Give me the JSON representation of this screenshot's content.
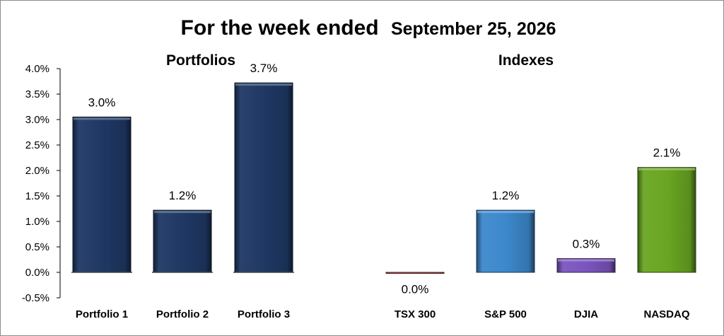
{
  "chart_data": {
    "type": "bar",
    "title": "For the week ended",
    "subtitle": "September 25, 2026",
    "groups": [
      {
        "label": "Portfolios",
        "categories": [
          "Portfolio 1",
          "Portfolio 2",
          "Portfolio 3"
        ]
      },
      {
        "label": "Indexes",
        "categories": [
          "TSX 300",
          "S&P 500",
          "DJIA",
          "NASDAQ"
        ]
      }
    ],
    "categories": [
      "Portfolio 1",
      "Portfolio 2",
      "Portfolio 3",
      "TSX 300",
      "S&P 500",
      "DJIA",
      "NASDAQ"
    ],
    "values": [
      3.0,
      1.2,
      3.7,
      0.0,
      1.2,
      0.3,
      2.1
    ],
    "plotted_values": [
      3.05,
      1.22,
      3.72,
      -0.02,
      1.22,
      0.27,
      2.06
    ],
    "data_labels": [
      "3.0%",
      "1.2%",
      "3.7%",
      "0.0%",
      "1.2%",
      "0.3%",
      "2.1%"
    ],
    "bar_colors": [
      "#1f3864",
      "#1f3864",
      "#1f3864",
      "#c0504d",
      "#3c88cc",
      "#7b55bf",
      "#6aa622"
    ],
    "ylim": [
      -0.5,
      4.0
    ],
    "yticks": [
      -0.5,
      0.0,
      0.5,
      1.0,
      1.5,
      2.0,
      2.5,
      3.0,
      3.5,
      4.0
    ],
    "ytick_labels": [
      "-0.5%",
      "0.0%",
      "0.5%",
      "1.0%",
      "1.5%",
      "2.0%",
      "2.5%",
      "3.0%",
      "3.5%",
      "4.0%"
    ],
    "xlabel": "",
    "ylabel": "",
    "grid": false,
    "legend": "none"
  }
}
